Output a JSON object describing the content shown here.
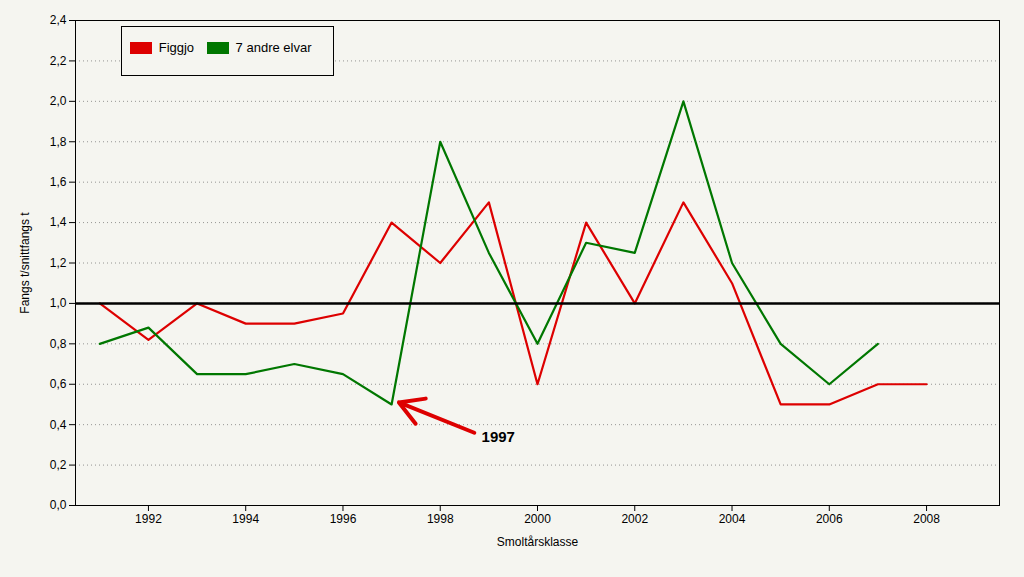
{
  "chart_data": {
    "type": "line",
    "x": [
      1991,
      1992,
      1993,
      1994,
      1995,
      1996,
      1997,
      1998,
      1999,
      2000,
      2001,
      2002,
      2003,
      2004,
      2005,
      2006,
      2007,
      2008
    ],
    "series": [
      {
        "name": "Figgjo",
        "color": "#dd0000",
        "values": [
          1.0,
          0.82,
          1.0,
          0.9,
          0.9,
          0.95,
          1.4,
          1.2,
          1.5,
          0.6,
          1.4,
          1.0,
          1.5,
          1.1,
          0.5,
          0.5,
          0.6,
          0.6
        ]
      },
      {
        "name": "7 andre elvar",
        "color": "#007700",
        "values": [
          0.8,
          0.88,
          0.65,
          0.65,
          0.7,
          0.65,
          0.5,
          1.8,
          1.25,
          0.8,
          1.3,
          1.25,
          2.0,
          1.2,
          0.8,
          0.6,
          0.8,
          null
        ]
      }
    ],
    "xlabel": "Smoltårsklasse",
    "ylabel": "Fangs t/snittfangs t",
    "xlim": [
      1990.5,
      2009.5
    ],
    "xticks": [
      1992,
      1994,
      1996,
      1998,
      2000,
      2002,
      2004,
      2006,
      2008
    ],
    "ylim": [
      0.0,
      2.4
    ],
    "yticks": [
      {
        "value": 0.0,
        "label": "0,0"
      },
      {
        "value": 0.2,
        "label": "0,2"
      },
      {
        "value": 0.4,
        "label": "0,4"
      },
      {
        "value": 0.6,
        "label": "0,6"
      },
      {
        "value": 0.8,
        "label": "0,8"
      },
      {
        "value": 1.0,
        "label": "1,0"
      },
      {
        "value": 1.2,
        "label": "1,2"
      },
      {
        "value": 1.4,
        "label": "1,4"
      },
      {
        "value": 1.6,
        "label": "1,6"
      },
      {
        "value": 1.8,
        "label": "1,8"
      },
      {
        "value": 2.0,
        "label": "2,0"
      },
      {
        "value": 2.2,
        "label": "2,2"
      },
      {
        "value": 2.4,
        "label": "2,4"
      }
    ],
    "grid": "y",
    "legend": "upper left",
    "hline": {
      "y": 1.0,
      "color": "#000000"
    },
    "annotations": [
      {
        "text": "1997",
        "x": 1998.85,
        "y": 0.34,
        "arrow": {
          "x1": 1998.7,
          "y1": 0.36,
          "x2": 1997.15,
          "y2": 0.51,
          "color": "#dd0000"
        }
      }
    ]
  }
}
